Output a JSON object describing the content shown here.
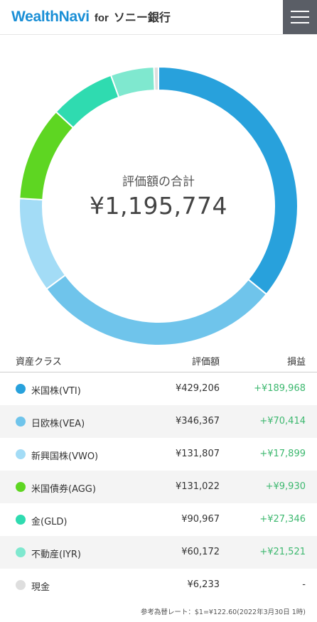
{
  "header": {
    "brand_main": "WealthNavi",
    "brand_for": "for",
    "brand_bank": "ソニー銀行",
    "menu_icon": "hamburger-menu-icon"
  },
  "summary": {
    "label": "評価額の合計",
    "total": "¥1,195,774"
  },
  "table": {
    "headers": {
      "asset_class": "資産クラス",
      "value": "評価額",
      "gain": "損益"
    },
    "rows": [
      {
        "name": "米国株(VTI)",
        "value": "¥429,206",
        "gain": "+¥189,968",
        "color": "#28a1dc"
      },
      {
        "name": "日欧株(VEA)",
        "value": "¥346,367",
        "gain": "+¥70,414",
        "color": "#6fc4eb"
      },
      {
        "name": "新興国株(VWO)",
        "value": "¥131,807",
        "gain": "+¥17,899",
        "color": "#a3dcf6"
      },
      {
        "name": "米国債券(AGG)",
        "value": "¥131,022",
        "gain": "+¥9,930",
        "color": "#5ed622"
      },
      {
        "name": "金(GLD)",
        "value": "¥90,967",
        "gain": "+¥27,346",
        "color": "#2fdbb0"
      },
      {
        "name": "不動産(IYR)",
        "value": "¥60,172",
        "gain": "+¥21,521",
        "color": "#7fe8cf"
      },
      {
        "name": "現金",
        "value": "¥6,233",
        "gain": "-",
        "color": "#dedede"
      }
    ]
  },
  "footnote": "参考為替レート：$1=¥122.60(2022年3月30日 1時)",
  "chart_data": {
    "type": "pie",
    "categories": [
      "米国株(VTI)",
      "日欧株(VEA)",
      "新興国株(VWO)",
      "米国債券(AGG)",
      "金(GLD)",
      "不動産(IYR)",
      "現金"
    ],
    "values": [
      429206,
      346367,
      131807,
      131022,
      90967,
      60172,
      6233
    ],
    "colors": [
      "#28a1dc",
      "#6fc4eb",
      "#a3dcf6",
      "#5ed622",
      "#2fdbb0",
      "#7fe8cf",
      "#dedede"
    ]
  }
}
